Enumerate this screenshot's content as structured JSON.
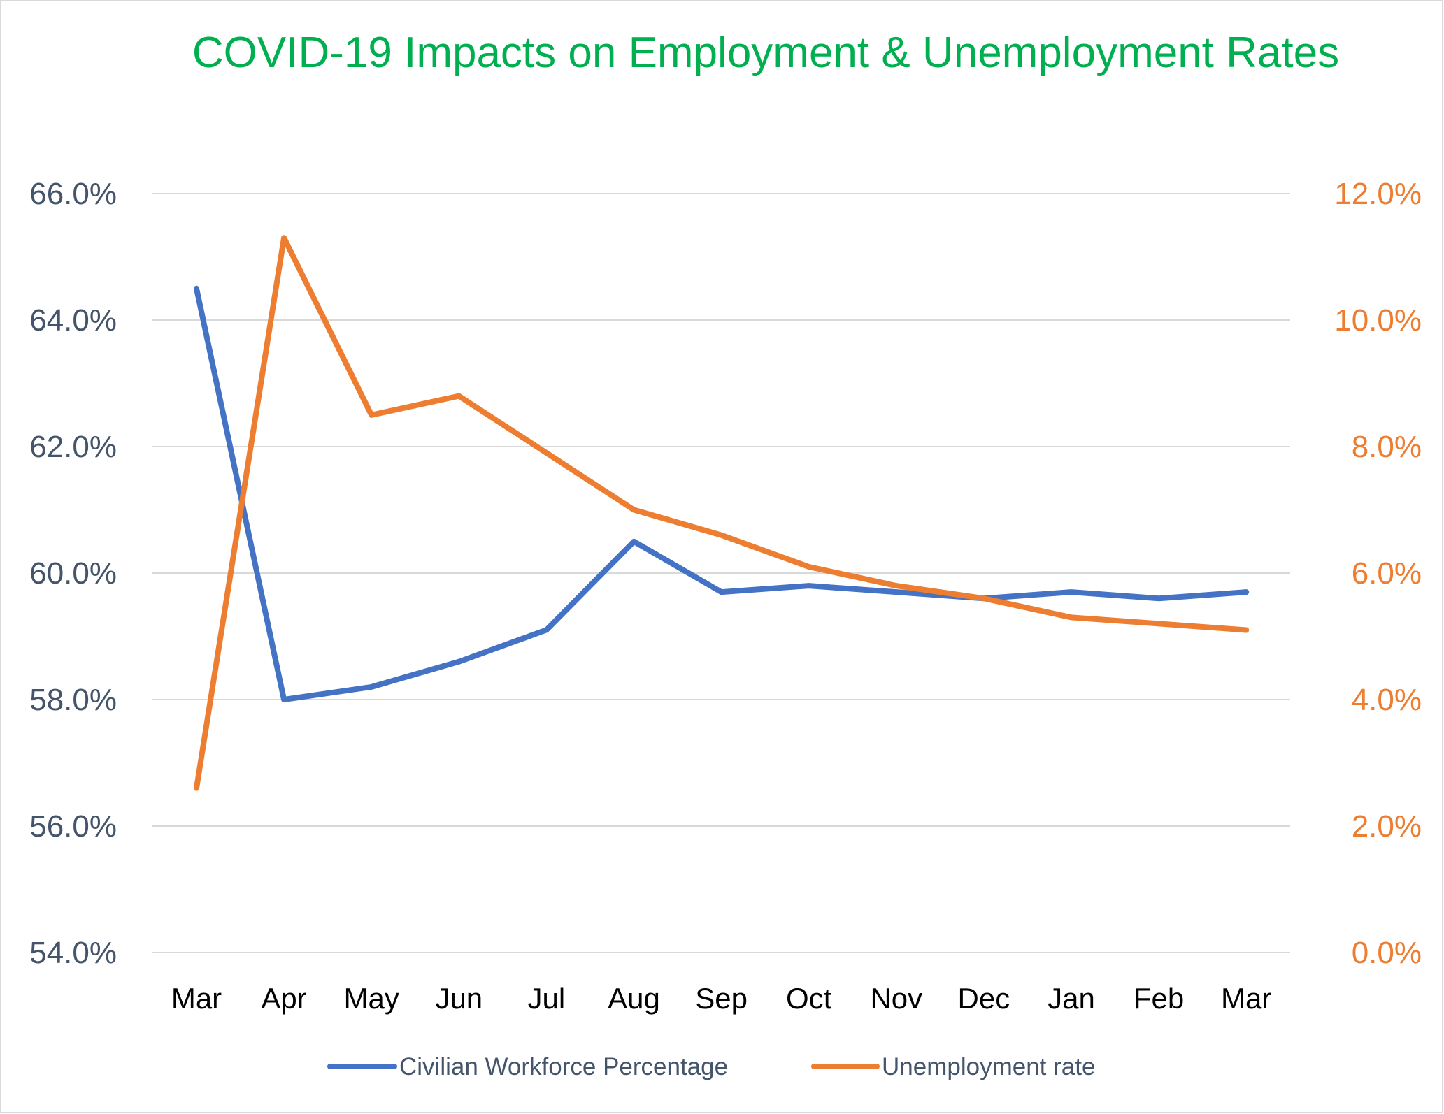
{
  "chart_data": {
    "type": "line",
    "title": "COVID-19 Impacts on Employment & Unemployment Rates",
    "categories": [
      "Mar",
      "Apr",
      "May",
      "Jun",
      "Jul",
      "Aug",
      "Sep",
      "Oct",
      "Nov",
      "Dec",
      "Jan",
      "Feb",
      "Mar"
    ],
    "y_left": {
      "ylim": [
        54.0,
        66.0
      ],
      "ticks": [
        "54.0%",
        "56.0%",
        "58.0%",
        "60.0%",
        "62.0%",
        "64.0%",
        "66.0%"
      ],
      "tick_values": [
        54,
        56,
        58,
        60,
        62,
        64,
        66
      ]
    },
    "y_right": {
      "ylim": [
        0.0,
        12.0
      ],
      "ticks": [
        "0.0%",
        "2.0%",
        "4.0%",
        "6.0%",
        "8.0%",
        "10.0%",
        "12.0%"
      ],
      "tick_values": [
        0,
        2,
        4,
        6,
        8,
        10,
        12
      ]
    },
    "series": [
      {
        "name": "Civilian Workforce Percentage",
        "axis": "left",
        "color": "#4472c4",
        "values": [
          64.5,
          58.0,
          58.2,
          58.6,
          59.1,
          60.5,
          59.7,
          59.8,
          59.7,
          59.6,
          59.7,
          59.6,
          59.7
        ]
      },
      {
        "name": "Unemployment  rate",
        "axis": "right",
        "color": "#ed7d31",
        "values": [
          2.6,
          11.3,
          8.5,
          8.8,
          7.9,
          7.0,
          6.6,
          6.1,
          5.8,
          5.6,
          5.3,
          5.2,
          5.1
        ]
      }
    ],
    "grid": true,
    "legend_position": "bottom"
  }
}
